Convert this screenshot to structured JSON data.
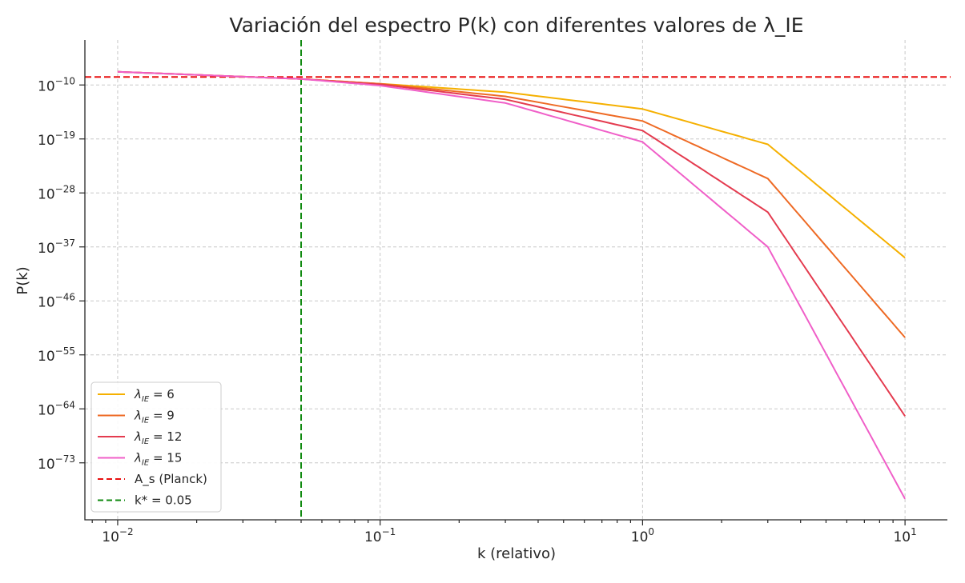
{
  "chart_data": {
    "type": "line",
    "title": "Variación del espectro P(k) con diferentes valores de λ_IE",
    "xlabel": "k (relativo)",
    "ylabel": "P(k)",
    "xscale": "log",
    "yscale": "log",
    "xlim": [
      0.0075,
      14.5
    ],
    "ylim_log10": [
      -82.5,
      -2.5
    ],
    "xticks": [
      {
        "value": 0.01,
        "base": "10",
        "exp": "−2"
      },
      {
        "value": 0.1,
        "base": "10",
        "exp": "−1"
      },
      {
        "value": 1,
        "base": "10",
        "exp": "0"
      },
      {
        "value": 10,
        "base": "10",
        "exp": "1"
      }
    ],
    "yticks": [
      {
        "log10": -10,
        "base": "10",
        "exp": "−10"
      },
      {
        "log10": -19,
        "base": "10",
        "exp": "−19"
      },
      {
        "log10": -28,
        "base": "10",
        "exp": "−28"
      },
      {
        "log10": -37,
        "base": "10",
        "exp": "−37"
      },
      {
        "log10": -46,
        "base": "10",
        "exp": "−46"
      },
      {
        "log10": -55,
        "base": "10",
        "exp": "−55"
      },
      {
        "log10": -64,
        "base": "10",
        "exp": "−64"
      },
      {
        "log10": -73,
        "base": "10",
        "exp": "−73"
      }
    ],
    "grid": true,
    "legend_position": "lower-left",
    "series": [
      {
        "name": "λ_IE = 6",
        "legend_symbol": "λ",
        "legend_sub": "IE",
        "legend_value": " = 6",
        "color": "#f5b000",
        "x": [
          0.01,
          0.05,
          0.1,
          0.3,
          1,
          3,
          10
        ],
        "log10_y": [
          -7.8,
          -9.0,
          -9.8,
          -11.2,
          -14.0,
          -19.9,
          -38.8
        ]
      },
      {
        "name": "λ_IE = 9",
        "legend_symbol": "λ",
        "legend_sub": "IE",
        "legend_value": " = 9",
        "color": "#ee6a24",
        "x": [
          0.01,
          0.05,
          0.1,
          0.3,
          1,
          3,
          10
        ],
        "log10_y": [
          -7.8,
          -9.0,
          -9.8,
          -11.9,
          -16.0,
          -25.6,
          -52.1
        ]
      },
      {
        "name": "λ_IE = 12",
        "legend_symbol": "λ",
        "legend_sub": "IE",
        "legend_value": " = 12",
        "color": "#e43b4f",
        "x": [
          0.01,
          0.05,
          0.1,
          0.3,
          1,
          3,
          10
        ],
        "log10_y": [
          -7.8,
          -9.0,
          -9.9,
          -12.4,
          -17.6,
          -31.2,
          -65.2
        ]
      },
      {
        "name": "λ_IE = 15",
        "legend_symbol": "λ",
        "legend_sub": "IE",
        "legend_value": " = 15",
        "color": "#f05fc8",
        "x": [
          0.01,
          0.05,
          0.1,
          0.3,
          1,
          3,
          10
        ],
        "log10_y": [
          -7.8,
          -9.0,
          -10.1,
          -13.0,
          -19.5,
          -37.0,
          -79.0
        ]
      }
    ],
    "reference_lines": [
      {
        "name": "A_s (Planck)",
        "orientation": "horizontal",
        "log10_value": -8.67,
        "color": "#e81010",
        "style": "dashed"
      },
      {
        "name": "k* = 0.05",
        "orientation": "vertical",
        "value": 0.05,
        "color": "#108a10",
        "style": "dashed"
      }
    ]
  }
}
